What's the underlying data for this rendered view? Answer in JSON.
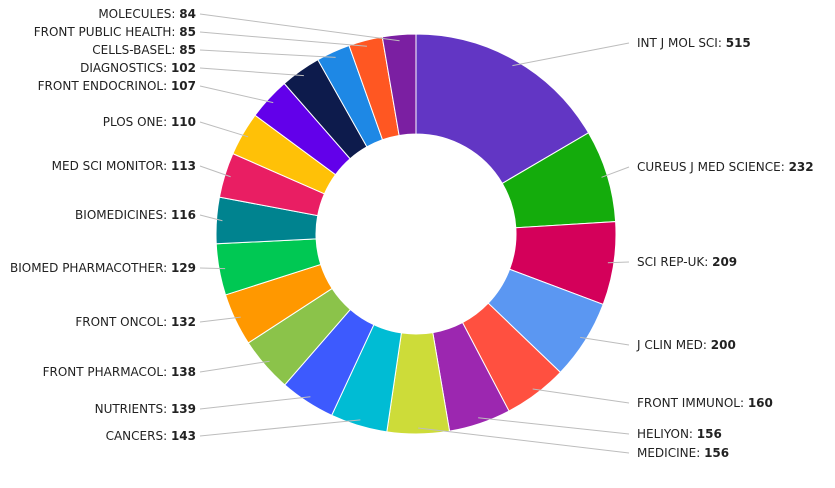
{
  "chart_data": {
    "type": "pie",
    "variant": "donut",
    "title": "",
    "legend": "none",
    "data_label_separator": ": ",
    "categories": [
      "INT J MOL SCI",
      "CUREUS J MED SCIENCE",
      "SCI REP-UK",
      "J CLIN MED",
      "FRONT IMMUNOL",
      "HELIYON",
      "MEDICINE",
      "CANCERS",
      "NUTRIENTS",
      "FRONT PHARMACOL",
      "FRONT ONCOL",
      "BIOMED PHARMACOTHER",
      "BIOMEDICINES",
      "MED SCI MONITOR",
      "PLOS ONE",
      "FRONT ENDOCRINOL",
      "DIAGNOSTICS",
      "CELLS-BASEL",
      "FRONT PUBLIC HEALTH",
      "MOLECULES"
    ],
    "values": [
      515,
      232,
      209,
      200,
      160,
      156,
      156,
      143,
      139,
      138,
      132,
      129,
      116,
      113,
      110,
      107,
      102,
      85,
      85,
      84
    ],
    "colors": [
      "#6236c4",
      "#14ac0c",
      "#d4005a",
      "#5b97f2",
      "#ff5040",
      "#9c27b0",
      "#cddc39",
      "#00bcd4",
      "#3d5afe",
      "#8bc34a",
      "#ff9800",
      "#00c853",
      "#00838f",
      "#e91e63",
      "#ffc107",
      "#6200ea",
      "#0d1b4c",
      "#1e88e5",
      "#ff5722",
      "#7b1fa2"
    ]
  }
}
